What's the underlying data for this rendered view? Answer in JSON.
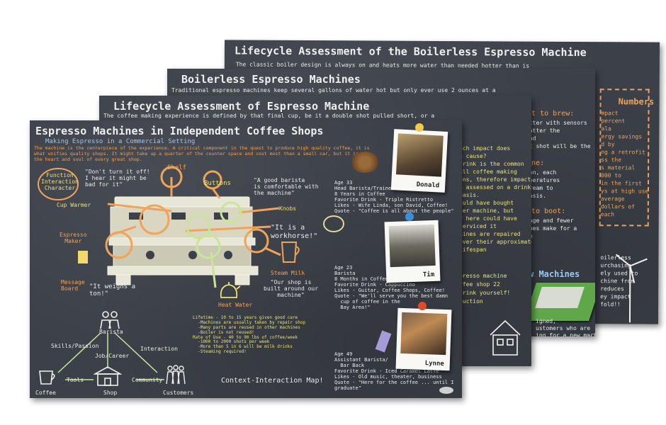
{
  "board4": {
    "title": "Lifecycle Assessment of the Boilerless Espresso Machine",
    "intro": "The classic boiler design is always on and heats more water than needed hotter than is",
    "numbers_heading": "Numbers",
    "numbers_lines": [
      "mpact",
      "percent",
      "ala",
      "ergy savings",
      "d by",
      "ng a retrofit",
      "ss the",
      "s material",
      "000 to",
      "in the first",
      "ys at high use",
      "average",
      "dollars of",
      "each"
    ],
    "bottom_lines": [
      "oilerless",
      "urchasing",
      "ely used to",
      "chine from",
      "reduces",
      "ey impact",
      "fold!!"
    ]
  },
  "board3": {
    "title": "Boilerless Espresso Machines",
    "intro": "Traditional espresso machines keep several gallons of water hot but only ever use  2 ounces  at a",
    "brew_heading": "ent to brew:",
    "brew_lines": [
      "atter with sensors",
      "matter the",
      "and",
      "ot shot will be the"
    ],
    "tune_heading": "Tune:",
    "tune_lines": [
      "-on, each",
      "mperatures",
      "dream to",
      "basis."
    ],
    "boot_heading": "n to boot:",
    "boot_lines": [
      "sage and fewer",
      "ines make for a",
      "ne"
    ],
    "new_heading": "w Machines",
    "new_lines": [
      "igned,",
      "ustomers who are",
      "ing for a new machine"
    ]
  },
  "board2": {
    "title": "Lifecycle Assessment of Espresso Machine",
    "intro": "The coffee making experience is defined by that final cup, be it a double shot pulled short, or a",
    "mid_lines": [
      "uch impact does",
      "e cause?",
      "drink is the common",
      "all coffee making",
      "ons, therefore impact",
      "e assessed on a drink",
      "basis.",
      "ould have bought",
      "ter machine, but",
      "y here could have",
      "serviced it",
      "hines are repaired",
      "over their approximately",
      "lifespan"
    ],
    "bottom_lines": [
      "presso machine",
      "ffee shop 22",
      "drink yourself!",
      "duction"
    ]
  },
  "board1": {
    "title": "Espresso Machines in Independent Coffee Shops",
    "subtitle": "Making Espresso in a Commercial Setting",
    "intro_lines": [
      "The machine is the centerpiece of the experience.  A critical component in the quest to produce high quality coffee, it is",
      "what unifies quality shops.  It might take up a quarter of the counter space and cost most than a small car, but it is",
      "the heart and soul of every great shop."
    ],
    "labels": {
      "function": "Function\nInteraction\nCharacter",
      "dont_turn": "\"Don't turn it off!\nI hear it might be\nbad for it\"",
      "shelf": "Shelf",
      "buttons": "Buttons",
      "good_barista": "\"A good barista\nis comfortable with\nthe machine\"",
      "cup_warmer": "Cup Warmer",
      "knobs": "Knobs",
      "espresso_maker": "Espresso\nMaker",
      "workhorse": "\"It is a\nworkhorse!\"",
      "message_board": "Message\nBoard",
      "weighs": "\"It weighs a\nton!\"",
      "steam_milk": "Steam Milk",
      "built_around": "\"Our shop is\nbuilt around our\nmachine\"",
      "heat_water": "Heat Water",
      "lifetime": "Lifetime - 10 to 15 years given good care\n  -Machines are usually taken by repair shop\n  -Many parts are reused in other machines\n  -Boiler is not reused!\nRate of Use - 40 to 90 lbs of coffee/week\n  -1000 to 2000 shots per week\n  -More than 5 in 6 will be milk drinks\n  -Steaming required!",
      "skills": "Skills/Passion",
      "barista": "Barista",
      "interaction": "Interaction",
      "job": "Job/Career",
      "coffee": "Coffee",
      "tools": "Tools",
      "shop": "Shop",
      "community": "Community",
      "customers": "Customers",
      "context_map": "Context-Interaction Map!"
    },
    "profiles": [
      {
        "name": "Donald",
        "text": "Age 33\nHead Barista/Trainer\n8 Years in Coffee\nFavorite Drink - Triple Ristretto\nLikes - Wife Linda, son David, Coffee!\nQuote - \"Coffee is all about the people\""
      },
      {
        "name": "Tim",
        "text": "Age 23\nBarista\n8 Months in Coffee\nFavorite Drink - Cappuccino\nLikes - Guitar, Coffee Shops, Coffee!\nQuote - \"We'll serve you the best damn\n  cup of coffee in the\n  Bay Area!\""
      },
      {
        "name": "Lynne",
        "text": "Age 49\nAssistant Barista/\n  Bar Back\nFavorite Drink - Iced Caramel Latte\nLikes - Old music, theater, business\nQuote - \"Here for the coffee ... until I\ngraduate\""
      }
    ]
  }
}
